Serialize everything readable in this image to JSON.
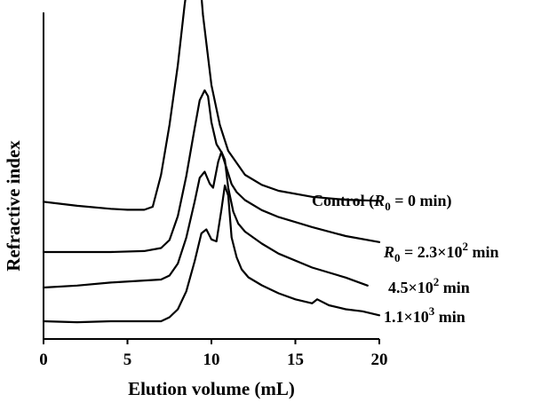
{
  "chart_data": {
    "type": "line",
    "title": "",
    "xlabel": "Elution volume (mL)",
    "ylabel": "Refractive index",
    "xlim": [
      0,
      20
    ],
    "xticks": [
      "0",
      "5",
      "10",
      "15",
      "20"
    ],
    "yticks_visible": false,
    "grid": false,
    "legend": "none; series labelled at right end of each trace",
    "line_color": "#000000",
    "series": [
      {
        "name": "Control (R0 = 0 min)",
        "label_parts": {
          "prefix": "Control (",
          "var": "R",
          "sub": "0",
          "suffix": " = 0 min)"
        },
        "x": [
          0,
          2,
          4,
          5,
          6,
          6.5,
          7,
          7.5,
          8,
          8.4,
          8.8,
          9.0,
          9.2,
          9.5,
          10,
          10.5,
          11,
          12,
          13,
          14,
          16,
          18,
          20
        ],
        "y": [
          0.65,
          0.45,
          0.3,
          0.25,
          0.25,
          0.4,
          2.0,
          4.5,
          7.5,
          10.5,
          13.0,
          13.8,
          13.0,
          10.0,
          6.5,
          4.5,
          3.2,
          2.0,
          1.5,
          1.2,
          0.9,
          0.75,
          0.7
        ]
      },
      {
        "name": "R0 = 2.3×10² min",
        "label_parts": {
          "prefix": "",
          "var": "R",
          "sub": "0",
          "suffix": " = 2.3×10",
          "sup": "2",
          "tail": " min"
        },
        "x": [
          0,
          2,
          4,
          6,
          7,
          7.5,
          8,
          8.5,
          9.0,
          9.3,
          9.6,
          9.8,
          10.0,
          10.3,
          10.6,
          10.9,
          11.2,
          11.5,
          12,
          13,
          14,
          16,
          18,
          20
        ],
        "y": [
          0.0,
          0.0,
          0.0,
          0.05,
          0.2,
          0.6,
          1.8,
          3.8,
          6.2,
          7.6,
          8.1,
          7.8,
          6.5,
          5.4,
          5.0,
          4.2,
          3.4,
          3.0,
          2.6,
          2.1,
          1.75,
          1.25,
          0.8,
          0.5
        ]
      },
      {
        "name": "4.5×10² min",
        "label_parts": {
          "prefix": "4.5×10",
          "sup": "2",
          "tail": " min"
        },
        "x": [
          0,
          2,
          4,
          6,
          7,
          7.5,
          8,
          8.5,
          9.0,
          9.3,
          9.6,
          9.9,
          10.1,
          10.4,
          10.6,
          10.8,
          11.0,
          11.3,
          11.6,
          12,
          13,
          14,
          16,
          18,
          19.3
        ],
        "y": [
          0.0,
          0.1,
          0.25,
          0.35,
          0.4,
          0.6,
          1.2,
          2.5,
          4.3,
          5.5,
          5.8,
          5.2,
          5.0,
          6.3,
          6.8,
          6.4,
          5.0,
          3.8,
          3.2,
          2.8,
          2.2,
          1.7,
          1.0,
          0.5,
          0.1
        ]
      },
      {
        "name": "1.1×10³ min",
        "label_parts": {
          "prefix": "1.1×10",
          "sup": "3",
          "tail": " min"
        },
        "x": [
          0,
          2,
          4,
          6,
          7,
          7.5,
          8,
          8.5,
          9.0,
          9.4,
          9.7,
          10.0,
          10.3,
          10.6,
          10.8,
          11.0,
          11.2,
          11.5,
          11.8,
          12.2,
          13,
          14,
          15,
          16,
          16.3,
          17,
          18,
          19,
          20
        ],
        "y": [
          0.0,
          -0.05,
          0.0,
          0.0,
          0.0,
          0.2,
          0.6,
          1.5,
          3.0,
          4.4,
          4.6,
          4.1,
          4.0,
          5.6,
          6.8,
          6.3,
          4.2,
          3.2,
          2.6,
          2.2,
          1.8,
          1.4,
          1.1,
          0.9,
          1.1,
          0.8,
          0.6,
          0.5,
          0.3
        ]
      }
    ]
  }
}
